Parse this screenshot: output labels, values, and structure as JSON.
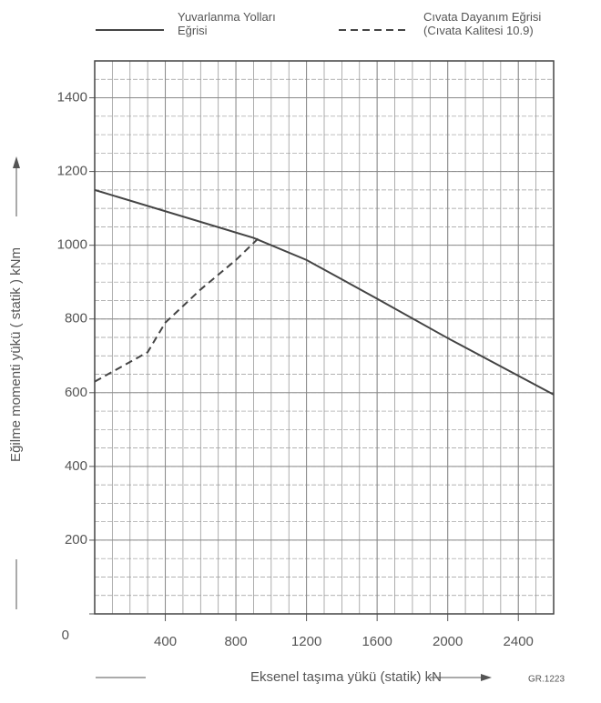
{
  "chart_data": {
    "type": "line",
    "xlabel": "Eksenel taşıma yükü  (statik) kN",
    "ylabel": "Eğilme momenti yükü  ( statik )  kNm",
    "annotation": "GR.1223",
    "xlim": [
      0,
      2600
    ],
    "xticks": [
      400,
      800,
      1200,
      1600,
      2000,
      2400
    ],
    "ylim": [
      0,
      1500
    ],
    "yticks": [
      0,
      200,
      400,
      600,
      800,
      1000,
      1200,
      1400
    ],
    "grid": true,
    "series": [
      {
        "name": "Yuvarlanma Yolları\nEğrisi",
        "color": "#444444",
        "dash": "solid",
        "x": [
          0,
          900,
          1200,
          1600,
          2000,
          2600
        ],
        "values": [
          1150,
          1020,
          960,
          855,
          748,
          595
        ]
      },
      {
        "name": "Cıvata Dayanım Eğrisi\n(Cıvata Kalitesi 10.9)",
        "color": "#444444",
        "dash": "dashed",
        "x": [
          0,
          300,
          400,
          600,
          800,
          930
        ],
        "values": [
          630,
          710,
          790,
          880,
          960,
          1020
        ]
      }
    ]
  }
}
